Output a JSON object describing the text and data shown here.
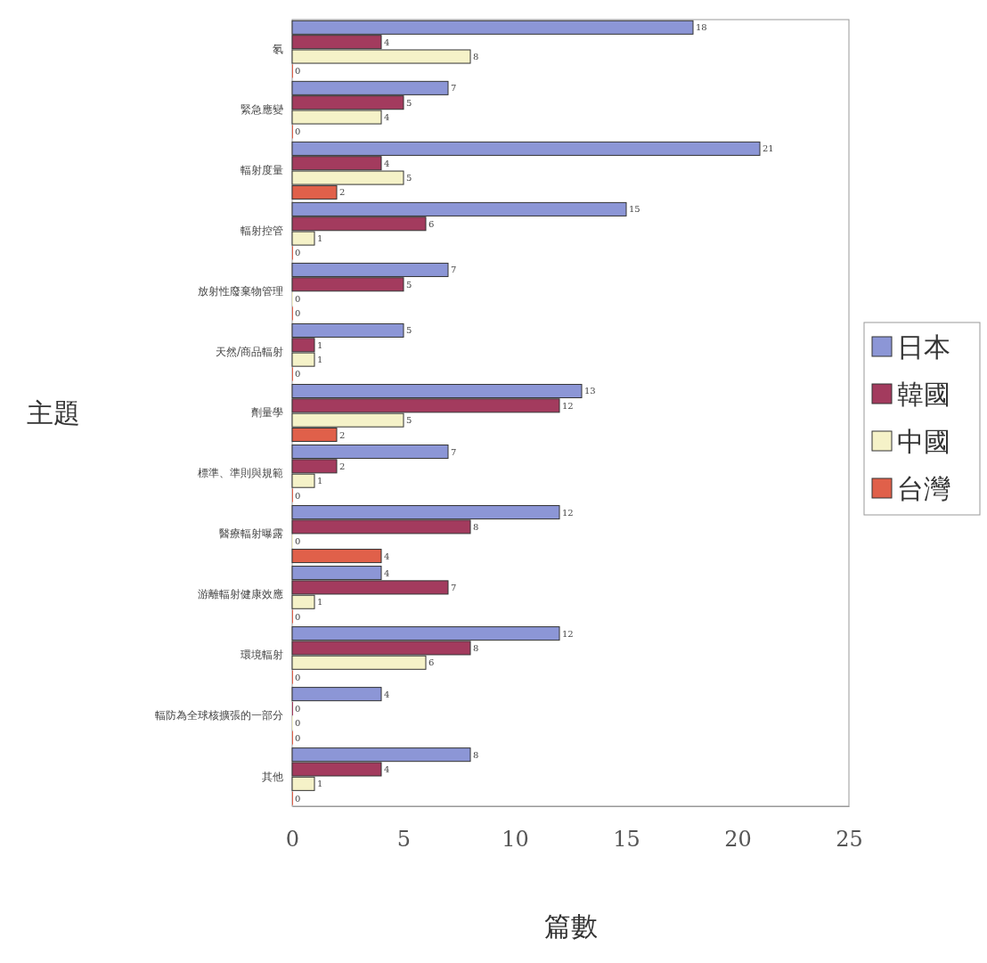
{
  "chart_data": {
    "type": "bar",
    "orientation": "horizontal",
    "xlabel": "篇數",
    "ylabel": "主題",
    "categories": [
      "氡",
      "緊急應變",
      "輻射度量",
      "輻射控管",
      "放射性廢棄物管理",
      "天然/商品輻射",
      "劑量學",
      "標準、準則與規範",
      "醫療輻射曝露",
      "游離輻射健康效應",
      "環境輻射",
      "輻防為全球核擴張的一部分",
      "其他"
    ],
    "series": [
      {
        "name": "日本",
        "color": "#8c96d6",
        "values": [
          18,
          7,
          21,
          15,
          7,
          5,
          13,
          7,
          12,
          4,
          12,
          4,
          8
        ]
      },
      {
        "name": "韓國",
        "color": "#a33b5e",
        "values": [
          4,
          5,
          4,
          6,
          5,
          1,
          12,
          2,
          8,
          7,
          8,
          0,
          4
        ]
      },
      {
        "name": "中國",
        "color": "#f5f2c8",
        "values": [
          8,
          4,
          5,
          1,
          0,
          1,
          5,
          1,
          0,
          1,
          6,
          0,
          1
        ]
      },
      {
        "name": "台灣",
        "color": "#e0604a",
        "values": [
          0,
          0,
          2,
          0,
          0,
          0,
          2,
          0,
          4,
          0,
          0,
          0,
          0
        ]
      }
    ],
    "xlim": [
      0,
      25
    ],
    "xticks": [
      0,
      5,
      10,
      15,
      20,
      25
    ],
    "data_labels": true,
    "legend": "right",
    "grid": false
  }
}
